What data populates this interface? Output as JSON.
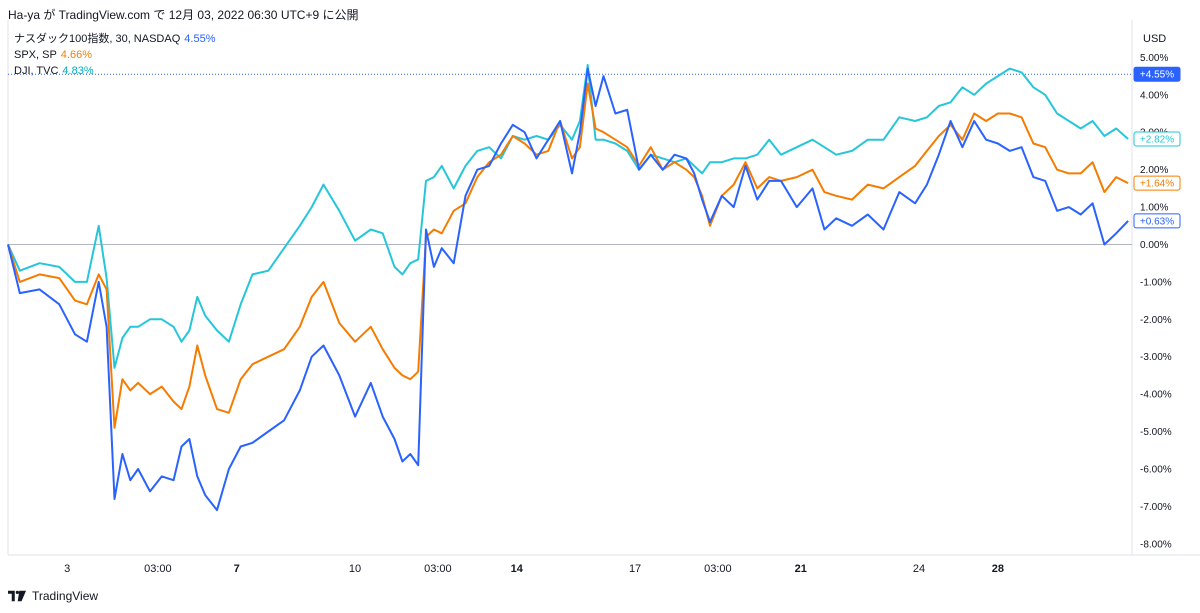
{
  "header": {
    "text": "Ha-ya が TradingView.com で 12月 03, 2022 06:30 UTC+9 に公開"
  },
  "legend": [
    {
      "symbol": "ナスダック100指数, 30, NASDAQ",
      "pct": "4.55%",
      "color": "#2962ff"
    },
    {
      "symbol": "SPX, SP",
      "pct": "4.66%",
      "color": "#f57c00"
    },
    {
      "symbol": "DJI, TVC",
      "pct": "4.83%",
      "color": "#26c6da"
    }
  ],
  "axis": {
    "currency": "USD"
  },
  "footer": {
    "brand": "TradingView"
  },
  "colors": {
    "ndx": "#2962ff",
    "spx": "#f57c00",
    "dji": "#26c6da",
    "zero_line": "#b2b5be",
    "grid": "#f0f3fa"
  },
  "chart_data": {
    "type": "line",
    "ylabel": "USD",
    "ylim": [
      -8.3,
      6.0
    ],
    "y_ticks": [
      "5.00%",
      "4.00%",
      "3.00%",
      "2.00%",
      "1.00%",
      "0.00%",
      "-1.00%",
      "-2.00%",
      "-3.00%",
      "-4.00%",
      "-5.00%",
      "-6.00%",
      "-7.00%",
      "-8.00%"
    ],
    "y_tick_values": [
      5,
      4,
      3,
      2,
      1,
      0,
      -1,
      -2,
      -3,
      -4,
      -5,
      -6,
      -7,
      -8
    ],
    "x_ticks": [
      {
        "label": "3",
        "x": 1.5,
        "bold": false
      },
      {
        "label": "03:00",
        "x": 3.8,
        "bold": false
      },
      {
        "label": "7",
        "x": 5.8,
        "bold": true
      },
      {
        "label": "10",
        "x": 8.8,
        "bold": false
      },
      {
        "label": "03:00",
        "x": 10.9,
        "bold": false
      },
      {
        "label": "14",
        "x": 12.9,
        "bold": true
      },
      {
        "label": "17",
        "x": 15.9,
        "bold": false
      },
      {
        "label": "03:00",
        "x": 18.0,
        "bold": false
      },
      {
        "label": "21",
        "x": 20.1,
        "bold": true
      },
      {
        "label": "24",
        "x": 23.1,
        "bold": false
      },
      {
        "label": "28",
        "x": 25.1,
        "bold": true
      }
    ],
    "xlim": [
      0,
      28.5
    ],
    "price_tags": [
      {
        "series": "NASDAQ 100",
        "label": "+4.55%",
        "value": 4.55,
        "filled": true
      },
      {
        "series": "DJI",
        "label": "+2.82%",
        "value": 2.82,
        "filled": false
      },
      {
        "series": "SPX",
        "label": "+1.64%",
        "value": 1.64,
        "filled": false
      },
      {
        "series": "NASDAQ 100",
        "label": "+0.63%",
        "value": 0.63,
        "filled": false
      }
    ],
    "series": [
      {
        "key": "ndx",
        "name": "ナスダック100指数",
        "x": [
          0,
          0.3,
          0.8,
          1.3,
          1.7,
          2.0,
          2.3,
          2.5,
          2.7,
          2.9,
          3.1,
          3.3,
          3.6,
          3.9,
          4.2,
          4.4,
          4.6,
          4.8,
          5.0,
          5.3,
          5.6,
          5.9,
          6.2,
          6.6,
          7.0,
          7.4,
          7.7,
          8.0,
          8.4,
          8.8,
          9.2,
          9.5,
          9.8,
          10.0,
          10.2,
          10.4,
          10.6,
          10.8,
          11.0,
          11.3,
          11.6,
          11.9,
          12.2,
          12.5,
          12.8,
          13.1,
          13.4,
          13.7,
          14.0,
          14.3,
          14.5,
          14.7,
          14.9,
          15.1,
          15.4,
          15.7,
          16.0,
          16.3,
          16.6,
          16.9,
          17.2,
          17.4,
          17.6,
          17.8,
          18.1,
          18.4,
          18.7,
          19.0,
          19.3,
          19.6,
          20.0,
          20.4,
          20.7,
          21.0,
          21.4,
          21.8,
          22.2,
          22.6,
          23.0,
          23.3,
          23.6,
          23.9,
          24.2,
          24.5,
          24.8,
          25.1,
          25.4,
          25.7,
          26.0,
          26.3,
          26.6,
          26.9,
          27.2,
          27.5,
          27.8,
          28.1,
          28.4
        ],
        "y": [
          0,
          -1.3,
          -1.2,
          -1.6,
          -2.4,
          -2.6,
          -1.0,
          -2.2,
          -6.8,
          -5.6,
          -6.3,
          -6.0,
          -6.6,
          -6.2,
          -6.3,
          -5.4,
          -5.2,
          -6.2,
          -6.7,
          -7.1,
          -6.0,
          -5.4,
          -5.3,
          -5.0,
          -4.7,
          -3.9,
          -3.0,
          -2.7,
          -3.5,
          -4.6,
          -3.7,
          -4.6,
          -5.2,
          -5.8,
          -5.6,
          -5.9,
          0.4,
          -0.6,
          -0.1,
          -0.5,
          1.3,
          2.0,
          2.1,
          2.7,
          3.2,
          3.0,
          2.3,
          2.8,
          3.3,
          1.9,
          3.0,
          4.7,
          3.7,
          4.5,
          3.5,
          3.6,
          2.0,
          2.4,
          2.0,
          2.4,
          2.3,
          1.9,
          1.2,
          0.6,
          1.3,
          1.0,
          2.1,
          1.2,
          1.7,
          1.7,
          1.0,
          1.5,
          0.4,
          0.7,
          0.5,
          0.8,
          0.4,
          1.4,
          1.1,
          1.6,
          2.4,
          3.3,
          2.6,
          3.3,
          2.8,
          2.7,
          2.5,
          2.6,
          1.8,
          1.7,
          0.9,
          1.0,
          0.8,
          1.1,
          0.0,
          0.3,
          0.63
        ]
      },
      {
        "key": "spx",
        "name": "SPX",
        "x": [
          0,
          0.3,
          0.8,
          1.3,
          1.7,
          2.0,
          2.3,
          2.5,
          2.7,
          2.9,
          3.1,
          3.3,
          3.6,
          3.9,
          4.2,
          4.4,
          4.6,
          4.8,
          5.0,
          5.3,
          5.6,
          5.9,
          6.2,
          6.6,
          7.0,
          7.4,
          7.7,
          8.0,
          8.4,
          8.8,
          9.2,
          9.5,
          9.8,
          10.0,
          10.2,
          10.4,
          10.6,
          10.8,
          11.0,
          11.3,
          11.6,
          11.9,
          12.2,
          12.5,
          12.8,
          13.1,
          13.4,
          13.7,
          14.0,
          14.3,
          14.5,
          14.7,
          14.9,
          15.1,
          15.4,
          15.7,
          16.0,
          16.3,
          16.6,
          16.9,
          17.2,
          17.4,
          17.6,
          17.8,
          18.1,
          18.4,
          18.7,
          19.0,
          19.3,
          19.6,
          20.0,
          20.4,
          20.7,
          21.0,
          21.4,
          21.8,
          22.2,
          22.6,
          23.0,
          23.3,
          23.6,
          23.9,
          24.2,
          24.5,
          24.8,
          25.1,
          25.4,
          25.7,
          26.0,
          26.3,
          26.6,
          26.9,
          27.2,
          27.5,
          27.8,
          28.1,
          28.4
        ],
        "y": [
          0,
          -1.0,
          -0.8,
          -0.9,
          -1.5,
          -1.6,
          -0.8,
          -1.2,
          -4.9,
          -3.6,
          -3.9,
          -3.7,
          -4.0,
          -3.8,
          -4.2,
          -4.4,
          -3.8,
          -2.7,
          -3.5,
          -4.4,
          -4.5,
          -3.6,
          -3.2,
          -3.0,
          -2.8,
          -2.2,
          -1.4,
          -1.0,
          -2.1,
          -2.6,
          -2.2,
          -2.8,
          -3.3,
          -3.5,
          -3.6,
          -3.4,
          0.2,
          0.4,
          0.3,
          0.9,
          1.1,
          1.8,
          2.2,
          2.4,
          2.9,
          2.7,
          2.4,
          2.5,
          3.3,
          2.3,
          2.6,
          4.3,
          3.1,
          3.0,
          2.8,
          2.6,
          2.1,
          2.6,
          2.0,
          2.2,
          2.0,
          1.8,
          1.3,
          0.5,
          1.3,
          1.6,
          2.2,
          1.5,
          1.8,
          1.7,
          1.8,
          2.0,
          1.4,
          1.3,
          1.2,
          1.6,
          1.5,
          1.8,
          2.1,
          2.5,
          2.9,
          3.2,
          2.8,
          3.5,
          3.3,
          3.5,
          3.5,
          3.4,
          2.7,
          2.6,
          2.0,
          1.9,
          1.9,
          2.2,
          1.4,
          1.8,
          1.64
        ]
      },
      {
        "key": "dji",
        "name": "DJI",
        "x": [
          0,
          0.3,
          0.8,
          1.3,
          1.7,
          2.0,
          2.3,
          2.5,
          2.7,
          2.9,
          3.1,
          3.3,
          3.6,
          3.9,
          4.2,
          4.4,
          4.6,
          4.8,
          5.0,
          5.3,
          5.6,
          5.9,
          6.2,
          6.6,
          7.0,
          7.4,
          7.7,
          8.0,
          8.4,
          8.8,
          9.2,
          9.5,
          9.8,
          10.0,
          10.2,
          10.4,
          10.6,
          10.8,
          11.0,
          11.3,
          11.6,
          11.9,
          12.2,
          12.5,
          12.8,
          13.1,
          13.4,
          13.7,
          14.0,
          14.3,
          14.5,
          14.7,
          14.9,
          15.1,
          15.4,
          15.7,
          16.0,
          16.3,
          16.6,
          16.9,
          17.2,
          17.4,
          17.6,
          17.8,
          18.1,
          18.4,
          18.7,
          19.0,
          19.3,
          19.6,
          20.0,
          20.4,
          20.7,
          21.0,
          21.4,
          21.8,
          22.2,
          22.6,
          23.0,
          23.3,
          23.6,
          23.9,
          24.2,
          24.5,
          24.8,
          25.1,
          25.4,
          25.7,
          26.0,
          26.3,
          26.6,
          26.9,
          27.2,
          27.5,
          27.8,
          28.1,
          28.4
        ],
        "y": [
          0,
          -0.7,
          -0.5,
          -0.6,
          -1.0,
          -1.0,
          0.5,
          -0.9,
          -3.3,
          -2.5,
          -2.2,
          -2.2,
          -2.0,
          -2.0,
          -2.2,
          -2.6,
          -2.3,
          -1.4,
          -1.9,
          -2.3,
          -2.6,
          -1.6,
          -0.8,
          -0.7,
          -0.1,
          0.5,
          1.0,
          1.6,
          0.9,
          0.1,
          0.4,
          0.3,
          -0.6,
          -0.8,
          -0.5,
          -0.4,
          1.7,
          1.8,
          2.1,
          1.5,
          2.1,
          2.5,
          2.6,
          2.3,
          2.9,
          2.8,
          2.9,
          2.8,
          3.2,
          2.8,
          3.3,
          4.8,
          2.8,
          2.8,
          2.7,
          2.5,
          2.0,
          2.4,
          2.3,
          2.2,
          2.3,
          2.1,
          1.9,
          2.2,
          2.2,
          2.3,
          2.3,
          2.4,
          2.8,
          2.4,
          2.6,
          2.8,
          2.6,
          2.4,
          2.5,
          2.8,
          2.8,
          3.4,
          3.3,
          3.4,
          3.7,
          3.8,
          4.2,
          4.0,
          4.3,
          4.5,
          4.7,
          4.6,
          4.2,
          4.0,
          3.5,
          3.3,
          3.1,
          3.3,
          2.9,
          3.1,
          2.82
        ]
      }
    ]
  }
}
